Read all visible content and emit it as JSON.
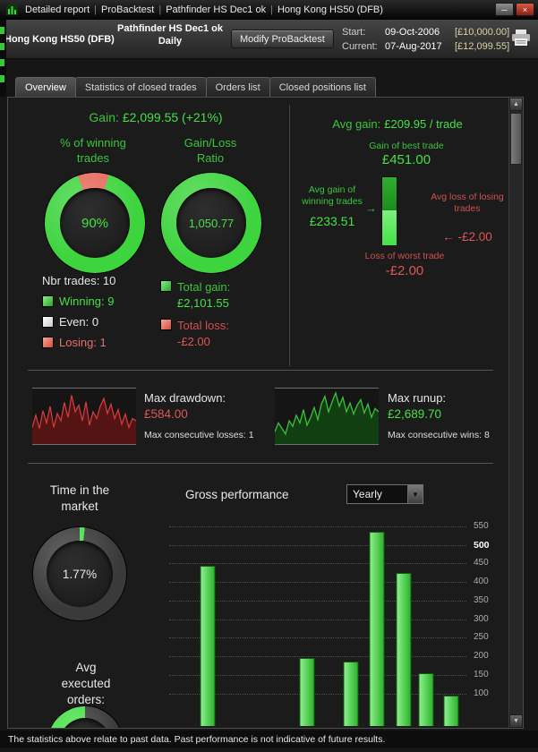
{
  "icons": {
    "minimize": "─",
    "close": "×",
    "dropdown_arrow": "▼",
    "scroll_up": "▲",
    "scroll_down": "▼",
    "arrow_right": "→",
    "arrow_left": "←"
  },
  "colors": {
    "green": "#3cc43c",
    "green_bright": "#46e046",
    "red": "#e05555",
    "panel_background": "#1b1b1b",
    "amount_yellow": "#d8d4a0"
  },
  "window": {
    "titlebar": {
      "items": [
        "Detailed report",
        "ProBacktest",
        "Pathfinder HS Dec1 ok",
        "Hong Kong HS50 (DFB)"
      ],
      "separator": "|"
    },
    "header": {
      "instrument": "Hong Kong HS50 (DFB)",
      "strategy": "Pathfinder HS Dec1 ok",
      "timeframe": "Daily",
      "modify_button": "Modify ProBacktest",
      "start_label": "Start:",
      "start_date": "09-Oct-2006",
      "start_amount": "[£10,000.00]",
      "current_label": "Current:",
      "current_date": "07-Aug-2017",
      "current_amount": "[£12,099.55]"
    },
    "tabs": [
      {
        "label": "Overview",
        "active": true
      },
      {
        "label": "Statistics of closed trades",
        "active": false
      },
      {
        "label": "Orders list",
        "active": false
      },
      {
        "label": "Closed positions list",
        "active": false
      }
    ],
    "footer_disclaimer": "The statistics above relate to past data. Past performance is not indicative of future results."
  },
  "overview": {
    "gain_label": "Gain:",
    "gain_value": "£2,099.55 (+21%)",
    "pct_winning_title": "% of winning trades",
    "ratio_title": "Gain/Loss Ratio",
    "nbr_trades": "Nbr trades: 10",
    "legend": {
      "winning": "Winning: 9",
      "even": "Even: 0",
      "losing": "Losing: 1"
    },
    "total_gain_label": "Total gain:",
    "total_gain_value": "£2,101.55",
    "total_loss_label": "Total loss:",
    "total_loss_value": "-£2.00",
    "avg_gain_label": "Avg gain:",
    "avg_gain_value": "£209.95 / trade",
    "best_trade_label": "Gain of best trade",
    "best_trade_value": "£451.00",
    "avg_win_label": "Avg gain of winning trades",
    "avg_win_value": "£233.51",
    "avg_loss_label": "Avg loss of losing trades",
    "avg_loss_value": "-£2.00",
    "worst_trade_label": "Loss of worst trade",
    "worst_trade_value": "-£2.00",
    "max_drawdown_label": "Max drawdown:",
    "max_drawdown_value": "£584.00",
    "max_consecutive_losses": "Max consecutive losses: 1",
    "max_runup_label": "Max runup:",
    "max_runup_value": "£2,689.70",
    "max_consecutive_wins": "Max consecutive wins: 8",
    "time_in_market_title": "Time in the market",
    "avg_orders_title": "Avg executed orders:",
    "gross_performance_title": "Gross performance",
    "period_selected": "Yearly"
  },
  "chart_data": {
    "winning_donut": {
      "type": "pie",
      "title": "% of winning trades",
      "center_label": "90%",
      "start_deg": -20,
      "slices": [
        {
          "name": "losing",
          "value": 10,
          "color": "#e8685a"
        },
        {
          "name": "winning",
          "value": 90,
          "color": "#3ed43e"
        }
      ]
    },
    "ratio_donut": {
      "type": "pie",
      "title": "Gain/Loss Ratio",
      "center_label": "1,050.77",
      "start_deg": 0,
      "slices": [
        {
          "name": "gain",
          "value": 100,
          "color": "#3ed43e"
        }
      ]
    },
    "avg_gain_bar": {
      "type": "bar",
      "best_trade": 451.0,
      "avg_gain_winning": 233.51,
      "bright_color": "#46e046",
      "dim_color": "#1e8a1e"
    },
    "drawdown_spark": {
      "type": "area",
      "color": "#d23c3c",
      "fill": "#551414",
      "values": [
        30,
        52,
        28,
        60,
        38,
        68,
        30,
        55,
        42,
        75,
        48,
        88,
        58,
        70,
        42,
        76,
        34,
        58,
        46,
        68,
        82,
        55,
        72,
        46,
        62,
        36,
        54,
        30,
        46,
        42
      ]
    },
    "runup_spark": {
      "type": "area",
      "color": "#3ec43e",
      "fill": "#123f12",
      "values": [
        22,
        38,
        28,
        18,
        42,
        32,
        52,
        38,
        62,
        34,
        48,
        66,
        44,
        72,
        86,
        58,
        76,
        92,
        68,
        84,
        58,
        74,
        54,
        70,
        80,
        56,
        72,
        48,
        64,
        58
      ]
    },
    "time_donut": {
      "type": "pie",
      "title": "Time in the market",
      "center_label": "1.77%",
      "start_deg": 0,
      "slices": [
        {
          "name": "in-market",
          "value": 1.77,
          "color": "#46e046"
        },
        {
          "name": "out-of-market",
          "value": 98.23,
          "color": "#3a3a3a"
        }
      ]
    },
    "orders_donut": {
      "type": "pie",
      "title": "Avg executed orders",
      "start_deg": 0,
      "slices": [
        {
          "name": "segment-a",
          "value": 75,
          "color": "#3a3a3a"
        },
        {
          "name": "segment-b",
          "value": 25,
          "color": "#46e046"
        }
      ]
    },
    "gross_performance": {
      "type": "bar",
      "title": "Gross performance",
      "period": "Yearly",
      "yticks": [
        550,
        500,
        450,
        400,
        350,
        300,
        250,
        200,
        150,
        100
      ],
      "bold_tick": 500,
      "axis_top_value": 562,
      "axis_bottom_value": 12,
      "bar_color": "#2db22d",
      "bars": [
        {
          "x_frac": 0.13,
          "value": 445
        },
        {
          "x_frac": 0.465,
          "value": 195
        },
        {
          "x_frac": 0.61,
          "value": 185
        },
        {
          "x_frac": 0.7,
          "value": 535
        },
        {
          "x_frac": 0.79,
          "value": 425
        },
        {
          "x_frac": 0.865,
          "value": 155
        },
        {
          "x_frac": 0.95,
          "value": 95
        }
      ]
    }
  }
}
